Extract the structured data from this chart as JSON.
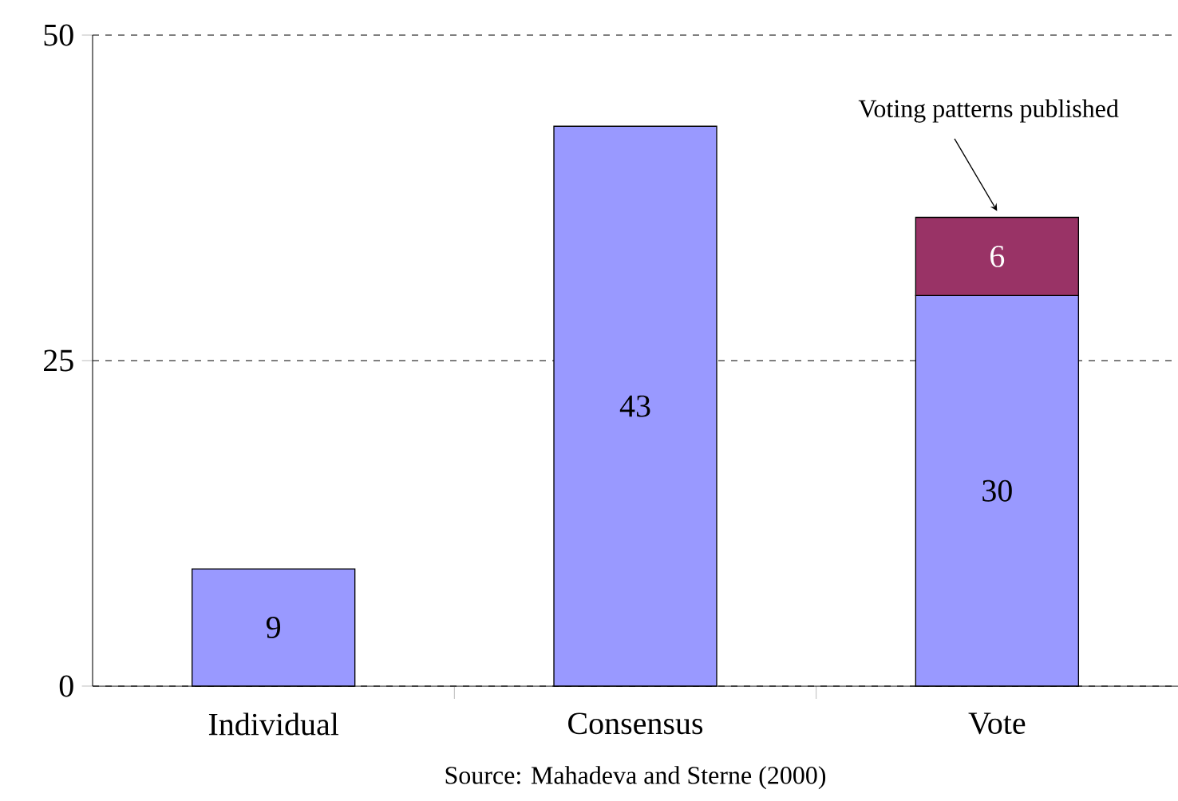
{
  "chart_data": {
    "type": "bar",
    "stacked": true,
    "categories": [
      "Individual",
      "Consensus",
      "Vote"
    ],
    "series": [
      {
        "color": "#9999ff",
        "values": [
          9,
          43,
          30
        ]
      },
      {
        "color": "#993366",
        "values": [
          null,
          null,
          6
        ]
      }
    ],
    "ylim": [
      0,
      50
    ],
    "yticks": [
      0,
      25,
      50
    ],
    "grid": "y",
    "data_labels": true,
    "annotations": [
      {
        "text": "Voting patterns published",
        "x": "Vote",
        "y": 36
      },
      "Source: Mahadeva and Sterne (2000)"
    ]
  }
}
